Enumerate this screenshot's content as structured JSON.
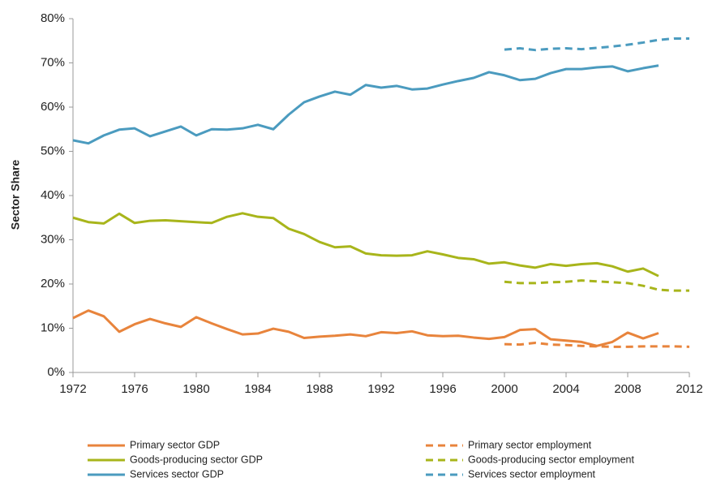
{
  "chart_data": {
    "type": "line",
    "y_label": "Sector Share",
    "x": [
      1972,
      1973,
      1974,
      1975,
      1976,
      1977,
      1978,
      1979,
      1980,
      1981,
      1982,
      1983,
      1984,
      1985,
      1986,
      1987,
      1988,
      1989,
      1990,
      1991,
      1992,
      1993,
      1994,
      1995,
      1996,
      1997,
      1998,
      1999,
      2000,
      2001,
      2002,
      2003,
      2004,
      2005,
      2006,
      2007,
      2008,
      2009,
      2010,
      2011,
      2012
    ],
    "xlim": [
      1972,
      2012
    ],
    "xticks": [
      1972,
      1976,
      1980,
      1984,
      1988,
      1992,
      1996,
      2000,
      2004,
      2008,
      2012
    ],
    "ylim": [
      0,
      80
    ],
    "yticks": [
      {
        "value": 0,
        "label": "0%"
      },
      {
        "value": 10,
        "label": "10%"
      },
      {
        "value": 20,
        "label": "20%"
      },
      {
        "value": 30,
        "label": "30%"
      },
      {
        "value": 40,
        "label": "40%"
      },
      {
        "value": 50,
        "label": "50%"
      },
      {
        "value": 60,
        "label": "60%"
      },
      {
        "value": 70,
        "label": "70%"
      },
      {
        "value": 80,
        "label": "80%"
      }
    ],
    "series": [
      {
        "name": "Primary sector GDP",
        "color": "#e8843c",
        "linestyle": "solid",
        "values": [
          12.3,
          14.0,
          12.7,
          9.2,
          10.9,
          12.1,
          11.1,
          10.3,
          12.5,
          11.1,
          9.8,
          8.6,
          8.8,
          9.9,
          9.2,
          7.8,
          8.1,
          8.3,
          8.6,
          8.2,
          9.1,
          8.9,
          9.3,
          8.4,
          8.2,
          8.3,
          7.9,
          7.6,
          8.0,
          9.6,
          9.8,
          7.5,
          7.2,
          6.9,
          6.0,
          6.9,
          9.0,
          7.7,
          8.9,
          null,
          null
        ]
      },
      {
        "name": "Goods-producing sector GDP",
        "color": "#a8b51b",
        "linestyle": "solid",
        "values": [
          35.0,
          34.0,
          33.7,
          35.9,
          33.8,
          34.3,
          34.4,
          34.2,
          34.0,
          33.8,
          35.2,
          36.0,
          35.2,
          34.9,
          32.5,
          31.3,
          29.5,
          28.3,
          28.5,
          26.9,
          26.5,
          26.4,
          26.5,
          27.4,
          26.7,
          25.9,
          25.6,
          24.6,
          24.9,
          24.2,
          23.7,
          24.5,
          24.1,
          24.5,
          24.7,
          24.0,
          22.8,
          23.5,
          21.8,
          null,
          null
        ]
      },
      {
        "name": "Services sector GDP",
        "color": "#4b9bbf",
        "linestyle": "solid",
        "values": [
          52.5,
          51.8,
          53.6,
          54.9,
          55.2,
          53.4,
          54.5,
          55.6,
          53.6,
          55.0,
          54.9,
          55.2,
          56.0,
          55.0,
          58.3,
          61.1,
          62.4,
          63.5,
          62.8,
          65.0,
          64.4,
          64.8,
          64.0,
          64.2,
          65.1,
          65.9,
          66.6,
          67.9,
          67.2,
          66.1,
          66.4,
          67.7,
          68.6,
          68.6,
          69.0,
          69.2,
          68.1,
          68.8,
          69.4,
          null,
          null
        ]
      },
      {
        "name": "Primary sector employment",
        "color": "#e8843c",
        "linestyle": "dashed",
        "values": [
          null,
          null,
          null,
          null,
          null,
          null,
          null,
          null,
          null,
          null,
          null,
          null,
          null,
          null,
          null,
          null,
          null,
          null,
          null,
          null,
          null,
          null,
          null,
          null,
          null,
          null,
          null,
          null,
          6.4,
          6.3,
          6.7,
          6.3,
          6.2,
          6.0,
          5.9,
          5.8,
          5.8,
          5.9,
          5.9,
          5.9,
          5.8
        ]
      },
      {
        "name": "Goods-producing sector employment",
        "color": "#a8b51b",
        "linestyle": "dashed",
        "values": [
          null,
          null,
          null,
          null,
          null,
          null,
          null,
          null,
          null,
          null,
          null,
          null,
          null,
          null,
          null,
          null,
          null,
          null,
          null,
          null,
          null,
          null,
          null,
          null,
          null,
          null,
          null,
          null,
          20.5,
          20.2,
          20.2,
          20.4,
          20.5,
          20.8,
          20.6,
          20.4,
          20.2,
          19.6,
          18.7,
          18.5,
          18.5
        ]
      },
      {
        "name": "Services sector employment",
        "color": "#4b9bbf",
        "linestyle": "dashed",
        "values": [
          null,
          null,
          null,
          null,
          null,
          null,
          null,
          null,
          null,
          null,
          null,
          null,
          null,
          null,
          null,
          null,
          null,
          null,
          null,
          null,
          null,
          null,
          null,
          null,
          null,
          null,
          null,
          null,
          73.0,
          73.3,
          72.9,
          73.2,
          73.3,
          73.1,
          73.4,
          73.7,
          74.1,
          74.6,
          75.2,
          75.5,
          75.5
        ]
      }
    ]
  }
}
